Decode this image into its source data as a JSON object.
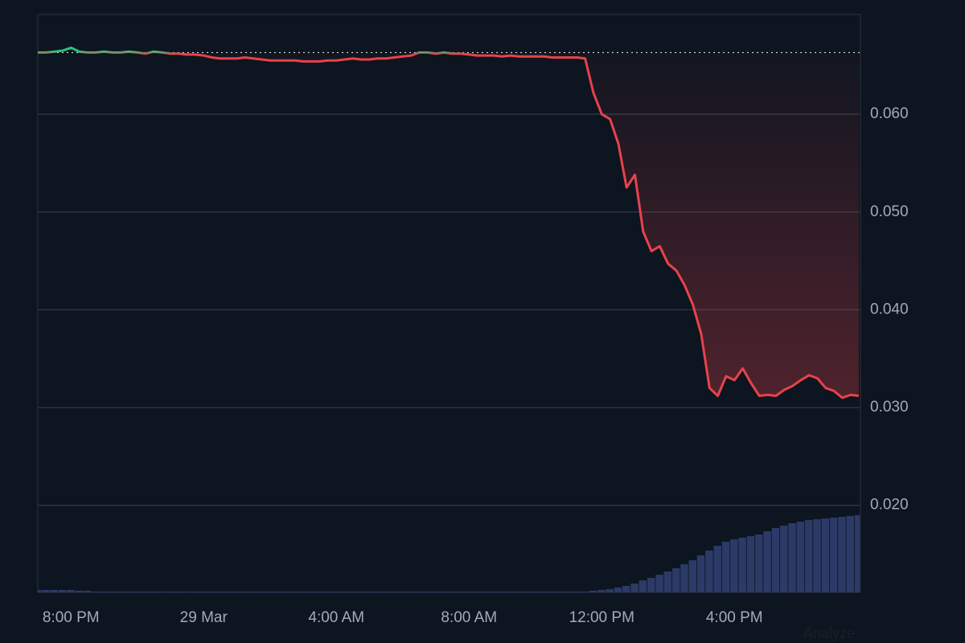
{
  "chart_data": {
    "type": "line",
    "categories": [
      null,
      null,
      null,
      null,
      "8:00 PM",
      null,
      null,
      null,
      null,
      null,
      null,
      null,
      null,
      null,
      null,
      null,
      null,
      null,
      null,
      null,
      "29 Mar",
      null,
      null,
      null,
      null,
      null,
      null,
      null,
      null,
      null,
      null,
      null,
      null,
      null,
      null,
      null,
      "4:00 AM",
      null,
      null,
      null,
      null,
      null,
      null,
      null,
      null,
      null,
      null,
      null,
      null,
      null,
      null,
      null,
      "8:00 AM",
      null,
      null,
      null,
      null,
      null,
      null,
      null,
      null,
      null,
      null,
      null,
      null,
      null,
      null,
      null,
      "12:00 PM",
      null,
      null,
      null,
      null,
      null,
      null,
      null,
      null,
      null,
      null,
      null,
      null,
      null,
      null,
      null,
      "4:00 PM",
      null,
      null,
      null,
      null,
      null,
      null,
      null,
      null,
      null,
      null,
      null,
      null,
      null,
      null,
      null
    ],
    "series": [
      {
        "up_color": "#2ec27e",
        "down_color": "#e8424a",
        "values": [
          0.0663,
          0.0663,
          0.0664,
          0.0665,
          0.0668,
          0.0664,
          0.0663,
          0.0663,
          0.0664,
          0.0663,
          0.0663,
          0.0664,
          0.0663,
          0.0662,
          0.0664,
          0.0663,
          0.0662,
          0.0662,
          0.0661,
          0.0661,
          0.066,
          0.0658,
          0.0657,
          0.0657,
          0.0657,
          0.0658,
          0.0657,
          0.0656,
          0.0655,
          0.0655,
          0.0655,
          0.0655,
          0.0654,
          0.0654,
          0.0654,
          0.0655,
          0.0655,
          0.0656,
          0.0657,
          0.0656,
          0.0656,
          0.0657,
          0.0657,
          0.0658,
          0.0659,
          0.066,
          0.0663,
          0.0663,
          0.0662,
          0.0663,
          0.0662,
          0.0662,
          0.0661,
          0.066,
          0.066,
          0.066,
          0.0659,
          0.066,
          0.0659,
          0.0659,
          0.0659,
          0.0659,
          0.0658,
          0.0658,
          0.0658,
          0.0658,
          0.0657,
          0.0622,
          0.06,
          0.0595,
          0.057,
          0.0525,
          0.0538,
          0.048,
          0.046,
          0.0465,
          0.0447,
          0.044,
          0.0425,
          0.0405,
          0.0375,
          0.032,
          0.0312,
          0.0332,
          0.0328,
          0.034,
          0.0325,
          0.0312,
          0.0313,
          0.0312,
          0.0318,
          0.0322,
          0.0328,
          0.0333,
          0.033,
          0.032,
          0.0317,
          0.031,
          0.0313,
          0.0312
        ]
      }
    ],
    "baseline": 0.0663,
    "ylim": [
      0.0111,
      0.0702
    ],
    "yticks": [
      {
        "value": 0.02,
        "label": "0.020"
      },
      {
        "value": 0.03,
        "label": "0.030"
      },
      {
        "value": 0.04,
        "label": "0.040"
      },
      {
        "value": 0.05,
        "label": "0.050"
      },
      {
        "value": 0.06,
        "label": "0.060"
      }
    ],
    "grid": true,
    "volume": {
      "color": "#2b3a66",
      "values": [
        3,
        3,
        3,
        3,
        3,
        2,
        2,
        1,
        1,
        1,
        1,
        1,
        1,
        1,
        1,
        1,
        1,
        1,
        1,
        1,
        1,
        1,
        1,
        1,
        1,
        1,
        1,
        1,
        1,
        1,
        1,
        1,
        1,
        1,
        1,
        1,
        1,
        1,
        1,
        1,
        1,
        1,
        1,
        1,
        1,
        1,
        1,
        1,
        1,
        1,
        1,
        1,
        1,
        1,
        1,
        1,
        1,
        1,
        1,
        1,
        1,
        1,
        1,
        1,
        1,
        1,
        1,
        2,
        3,
        4,
        6,
        8,
        11,
        15,
        18,
        22,
        26,
        30,
        35,
        40,
        46,
        52,
        58,
        63,
        66,
        68,
        70,
        72,
        76,
        80,
        83,
        86,
        88,
        90,
        91,
        92,
        93,
        94,
        95,
        96
      ]
    },
    "watermark": "Analyze"
  }
}
